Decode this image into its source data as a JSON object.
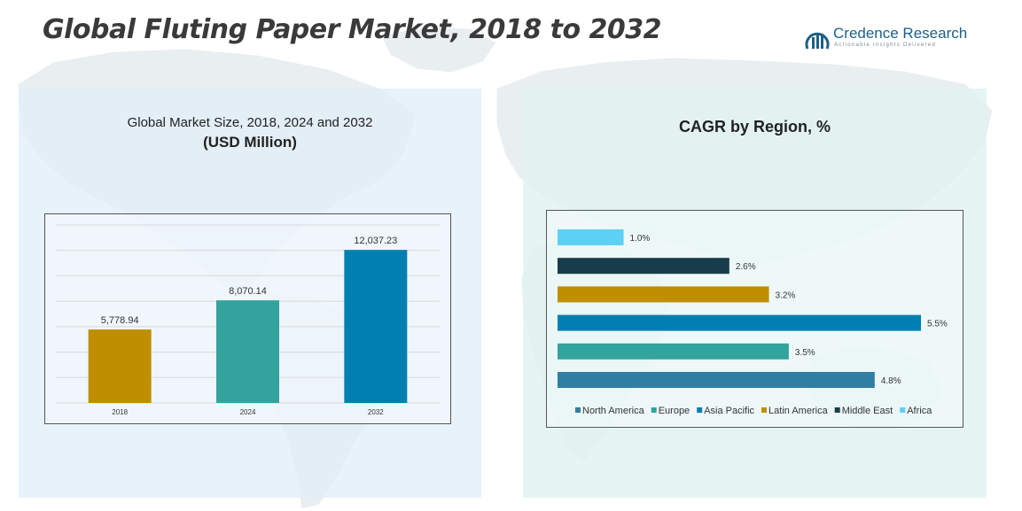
{
  "title": "Global Fluting Paper Market, 2018 to 2032",
  "logo": {
    "name": "Credence Research",
    "tagline": "Actionable Insights Delivered",
    "color": "#1d5f86"
  },
  "left_panel": {
    "subtitle": "Global Market Size, 2018, 2024 and 2032",
    "unit": "(USD Million)"
  },
  "right_panel": {
    "title": "CAGR by Region, %"
  },
  "chart_data": [
    {
      "type": "bar",
      "orientation": "vertical",
      "categories": [
        "2018",
        "2024",
        "2032"
      ],
      "values": [
        5778.94,
        8070.14,
        12037.23
      ],
      "value_labels": [
        "5,778.94",
        "8,070.14",
        "12,037.23"
      ],
      "colors": [
        "#bf8f00",
        "#33a39e",
        "#0080b0"
      ],
      "title": "Global Market Size, 2018, 2024 and 2032",
      "ylabel": "(USD Million)",
      "ylim": [
        0,
        14000
      ],
      "grid": true
    },
    {
      "type": "bar",
      "orientation": "horizontal",
      "title": "CAGR by Region, %",
      "categories": [
        "North America",
        "Europe",
        "Asia Pacific",
        "Latin America",
        "Middle East",
        "Africa"
      ],
      "values": [
        4.8,
        3.5,
        5.5,
        3.2,
        2.6,
        1.0
      ],
      "value_labels": [
        "4.8%",
        "3.5%",
        "5.5%",
        "3.2%",
        "2.6%",
        "1.0%"
      ],
      "colors": [
        "#2e7fa3",
        "#33a39e",
        "#0080b0",
        "#bf8f00",
        "#183c4a",
        "#5fd0f5"
      ],
      "xlim": [
        0,
        5.5
      ],
      "legend": "bottom",
      "grid": false
    }
  ]
}
